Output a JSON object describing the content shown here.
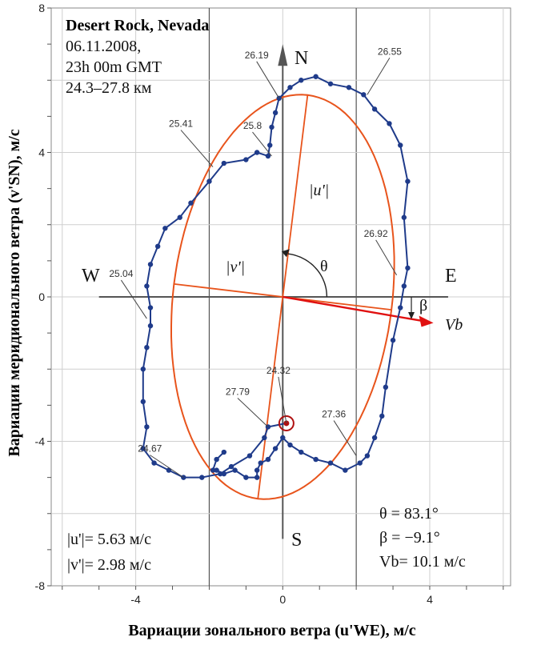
{
  "chart_data": {
    "type": "line",
    "title": "Desert Rock, Nevada",
    "date": "06.11.2008,",
    "time": "23h 00m GMT",
    "altitude_range": "24.3–27.8 км",
    "xlabel": "Вариации зонального ветра (u'WE), м/с",
    "ylabel": "Вариации меридионального ветра (v'SN), м/с",
    "xlim": [
      -6.3,
      6.2
    ],
    "ylim": [
      -8,
      8
    ],
    "x_ticks": [
      -4,
      0,
      4
    ],
    "y_ticks": [
      8,
      4,
      0,
      -4,
      -8
    ],
    "grid": true,
    "directions": {
      "north": "N",
      "south": "S",
      "west": "W",
      "east": "E"
    },
    "labels": {
      "u": "|u'|",
      "v": "|v'|",
      "theta": "θ",
      "beta": "β",
      "vb": "Vb"
    },
    "stats": {
      "theta": "θ = 83.1°",
      "beta": "β = −9.1°",
      "vb": "Vb= 10.1 м/с",
      "u_amp": "|u'|= 5.63 м/с",
      "v_amp": "|v'|= 2.98 м/с"
    },
    "colors": {
      "hodograph": "#1f3b8a",
      "ellipse": "#e8541c",
      "arrow": "#e01010",
      "axes": "#555555"
    },
    "start_point": [
      0.1,
      -3.5
    ],
    "ellipse": {
      "center": [
        0,
        0
      ],
      "semi_major": 5.63,
      "semi_minor": 2.98,
      "major_axis_angle_deg": 83.1
    },
    "vb_vector": {
      "x": 4.1,
      "y": -0.72
    },
    "series": [
      {
        "x": [
          0.1,
          -0.4,
          -0.5,
          -0.9,
          -1.4,
          -1.7,
          -2.2,
          -2.7,
          -3.1,
          -3.5,
          -3.8,
          -3.7,
          -3.8,
          -3.8,
          -3.7,
          -3.6,
          -3.6,
          -3.7,
          -3.6,
          -3.4,
          -3.2,
          -2.8,
          -2.5,
          -2.0,
          -1.6,
          -1.0,
          -0.7,
          -0.4,
          -0.35,
          -0.3,
          -0.2,
          -0.1,
          0.2,
          0.5,
          0.9,
          1.3,
          1.8,
          2.2,
          2.5,
          2.9,
          3.2,
          3.4,
          3.3,
          3.4,
          3.3,
          3.2,
          3.0,
          2.8,
          2.7,
          2.5,
          2.3,
          2.1,
          1.7,
          1.3,
          0.9,
          0.5,
          0.2,
          0.0,
          -0.2,
          -0.4,
          -0.6,
          -0.7,
          -0.7,
          -1.0,
          -1.3,
          -1.6,
          -1.8,
          -1.9,
          -1.8,
          -1.6
        ],
        "y": [
          -3.5,
          -3.6,
          -3.9,
          -4.4,
          -4.7,
          -4.9,
          -5.0,
          -5.0,
          -4.8,
          -4.6,
          -4.2,
          -3.6,
          -2.9,
          -2.0,
          -1.4,
          -0.8,
          -0.3,
          0.3,
          0.9,
          1.4,
          1.9,
          2.2,
          2.6,
          3.2,
          3.7,
          3.8,
          4.0,
          3.9,
          4.2,
          4.7,
          5.1,
          5.5,
          5.8,
          6.0,
          6.1,
          5.9,
          5.8,
          5.6,
          5.2,
          4.8,
          4.2,
          3.2,
          2.2,
          0.8,
          0.3,
          -0.3,
          -1.2,
          -2.5,
          -3.3,
          -3.9,
          -4.4,
          -4.6,
          -4.8,
          -4.6,
          -4.5,
          -4.3,
          -4.1,
          -3.9,
          -4.2,
          -4.5,
          -4.6,
          -4.8,
          -5.0,
          -5.0,
          -4.8,
          -4.9,
          -4.8,
          -4.8,
          -4.5,
          -4.3
        ]
      }
    ],
    "annotations": [
      {
        "text": "26.55",
        "point": [
          2.3,
          5.6
        ]
      },
      {
        "text": "26.19",
        "point": [
          -0.1,
          5.5
        ]
      },
      {
        "text": "25.8",
        "point": [
          -0.3,
          3.9
        ]
      },
      {
        "text": "25.41",
        "point": [
          -1.9,
          3.6
        ]
      },
      {
        "text": "26.92",
        "point": [
          3.1,
          0.6
        ]
      },
      {
        "text": "25.04",
        "point": [
          -3.7,
          -0.6
        ]
      },
      {
        "text": "24.32",
        "point": [
          0.1,
          -3.5
        ]
      },
      {
        "text": "27.79",
        "point": [
          -0.4,
          -3.6
        ]
      },
      {
        "text": "27.36",
        "point": [
          2.0,
          -4.4
        ]
      },
      {
        "text": "24.67",
        "point": [
          -2.7,
          -5.0
        ]
      }
    ]
  }
}
